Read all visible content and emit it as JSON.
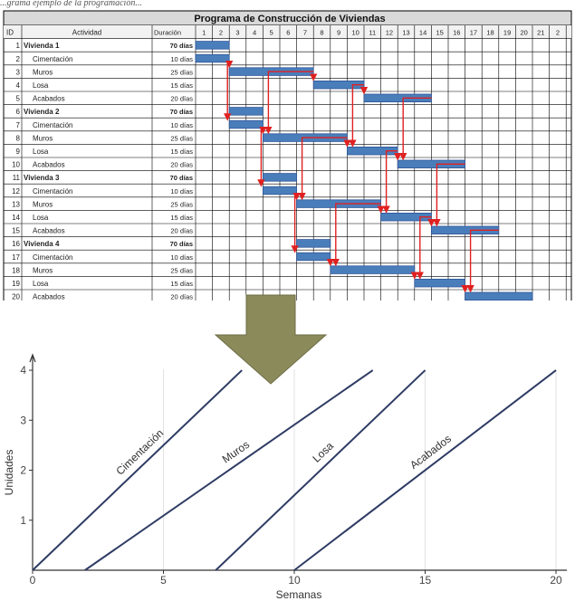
{
  "caption": "...grama ejemplo de la programación...",
  "gantt": {
    "title": "Programa de Construcción de Viviendas",
    "headers": {
      "id": "ID",
      "activity": "Actividad",
      "duration": "Duración"
    },
    "weeks": [
      "1",
      "2",
      "3",
      "4",
      "5",
      "6",
      "7",
      "8",
      "9",
      "10",
      "11",
      "12",
      "13",
      "14",
      "15",
      "16",
      "17",
      "18",
      "19",
      "20",
      "21",
      "2"
    ],
    "rows": [
      {
        "id": "1",
        "name": "Vivienda 1",
        "duration": "70 días",
        "bold": true
      },
      {
        "id": "2",
        "name": "Cimentación",
        "duration": "10 días",
        "start": 1,
        "end": 3,
        "bold": false
      },
      {
        "id": "3",
        "name": "Muros",
        "duration": "25 días",
        "start": 3,
        "end": 8,
        "bold": false
      },
      {
        "id": "4",
        "name": "Losa",
        "duration": "15 días",
        "start": 8,
        "end": 11,
        "bold": false
      },
      {
        "id": "5",
        "name": "Acabados",
        "duration": "20 días",
        "start": 11,
        "end": 15,
        "bold": false
      },
      {
        "id": "6",
        "name": "Vivienda 2",
        "duration": "70 días",
        "bold": true
      },
      {
        "id": "7",
        "name": "Cimentación",
        "duration": "10 días",
        "start": 3,
        "end": 5,
        "bold": false
      },
      {
        "id": "8",
        "name": "Muros",
        "duration": "25 días",
        "start": 5,
        "end": 10,
        "bold": false
      },
      {
        "id": "9",
        "name": "Losa",
        "duration": "15 días",
        "start": 10,
        "end": 13,
        "bold": false
      },
      {
        "id": "10",
        "name": "Acabados",
        "duration": "20 días",
        "start": 13,
        "end": 17,
        "bold": false
      },
      {
        "id": "11",
        "name": "Vivienda 3",
        "duration": "70 días",
        "bold": true
      },
      {
        "id": "12",
        "name": "Cimentación",
        "duration": "10 días",
        "start": 5,
        "end": 7,
        "bold": false
      },
      {
        "id": "13",
        "name": "Muros",
        "duration": "25 días",
        "start": 7,
        "end": 12,
        "bold": false
      },
      {
        "id": "14",
        "name": "Losa",
        "duration": "15 días",
        "start": 12,
        "end": 15,
        "bold": false
      },
      {
        "id": "15",
        "name": "Acabados",
        "duration": "20 días",
        "start": 15,
        "end": 19,
        "bold": false
      },
      {
        "id": "16",
        "name": "Vivienda 4",
        "duration": "70 días",
        "bold": true
      },
      {
        "id": "17",
        "name": "Cimentación",
        "duration": "10 días",
        "start": 7,
        "end": 9,
        "bold": false
      },
      {
        "id": "18",
        "name": "Muros",
        "duration": "25 días",
        "start": 9,
        "end": 14,
        "bold": false
      },
      {
        "id": "19",
        "name": "Losa",
        "duration": "15 días",
        "start": 14,
        "end": 17,
        "bold": false
      },
      {
        "id": "20",
        "name": "Acabados",
        "duration": "20 días",
        "start": 17,
        "end": 21,
        "bold": false
      }
    ],
    "colors": {
      "bar": "#4a7ebb",
      "bar_edge": "#2f5597",
      "arrow": "#e02020",
      "grid": "#000000",
      "title_bg": "#d9d9d9"
    }
  },
  "arrow_icon": {
    "name": "down-arrow-icon",
    "color": "#8b8a5a"
  },
  "chart_data": {
    "type": "line",
    "xlabel": "Semanas",
    "ylabel": "Unidades",
    "xlim": [
      0,
      20
    ],
    "ylim": [
      0,
      4.2
    ],
    "xticks": [
      0,
      5,
      10,
      15,
      20
    ],
    "yticks": [
      1,
      2,
      3,
      4
    ],
    "line_color": "#2e3b64",
    "series": [
      {
        "name": "Cimentación",
        "x": [
          0,
          8
        ],
        "y": [
          0,
          4
        ]
      },
      {
        "name": "Muros",
        "x": [
          2,
          13
        ],
        "y": [
          0,
          4
        ]
      },
      {
        "name": "Losa",
        "x": [
          7,
          15
        ],
        "y": [
          0,
          4
        ]
      },
      {
        "name": "Acabados",
        "x": [
          10,
          20
        ],
        "y": [
          0,
          4
        ]
      }
    ]
  }
}
